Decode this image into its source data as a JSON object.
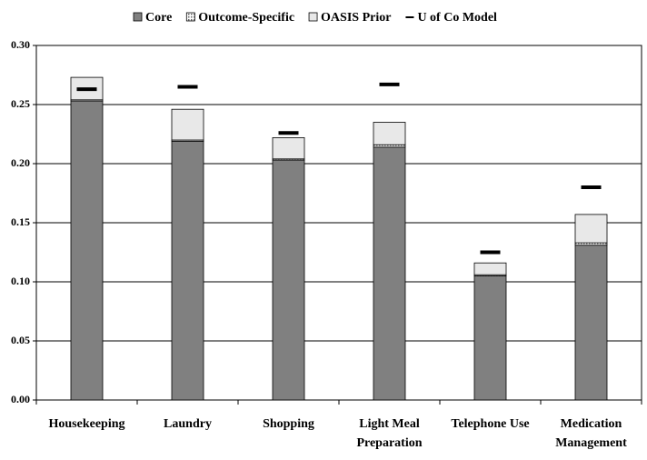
{
  "chart_data": {
    "type": "bar",
    "stacked": true,
    "categories": [
      "Housekeeping",
      "Laundry",
      "Shopping",
      "Light Meal Preparation",
      "Telephone Use",
      "Medication Management"
    ],
    "series": [
      {
        "name": "Core",
        "color": "#808080",
        "values": [
          0.253,
          0.219,
          0.203,
          0.214,
          0.105,
          0.131
        ]
      },
      {
        "name": "Outcome-Specific",
        "color": "#b0b0b0",
        "pattern": "dots",
        "values": [
          0.001,
          0.001,
          0.001,
          0.002,
          0.001,
          0.002
        ]
      },
      {
        "name": "OASIS Prior",
        "color": "#e8e8e8",
        "values": [
          0.019,
          0.026,
          0.018,
          0.019,
          0.01,
          0.024
        ]
      },
      {
        "name": "U of Co Model",
        "color": "#000000",
        "type": "marker",
        "values": [
          0.263,
          0.265,
          0.226,
          0.267,
          0.125,
          0.18
        ]
      }
    ],
    "ylim": [
      0,
      0.3
    ],
    "yticks": [
      {
        "value": 0,
        "label": "0.00"
      },
      {
        "value": 0.05,
        "label": "0.05"
      },
      {
        "value": 0.1,
        "label": "0.10"
      },
      {
        "value": 0.15,
        "label": "0.15"
      },
      {
        "value": 0.2,
        "label": "0.20"
      },
      {
        "value": 0.25,
        "label": "0.25"
      },
      {
        "value": 0.3,
        "label": "0.30"
      }
    ],
    "grid": true,
    "legend": "top"
  }
}
